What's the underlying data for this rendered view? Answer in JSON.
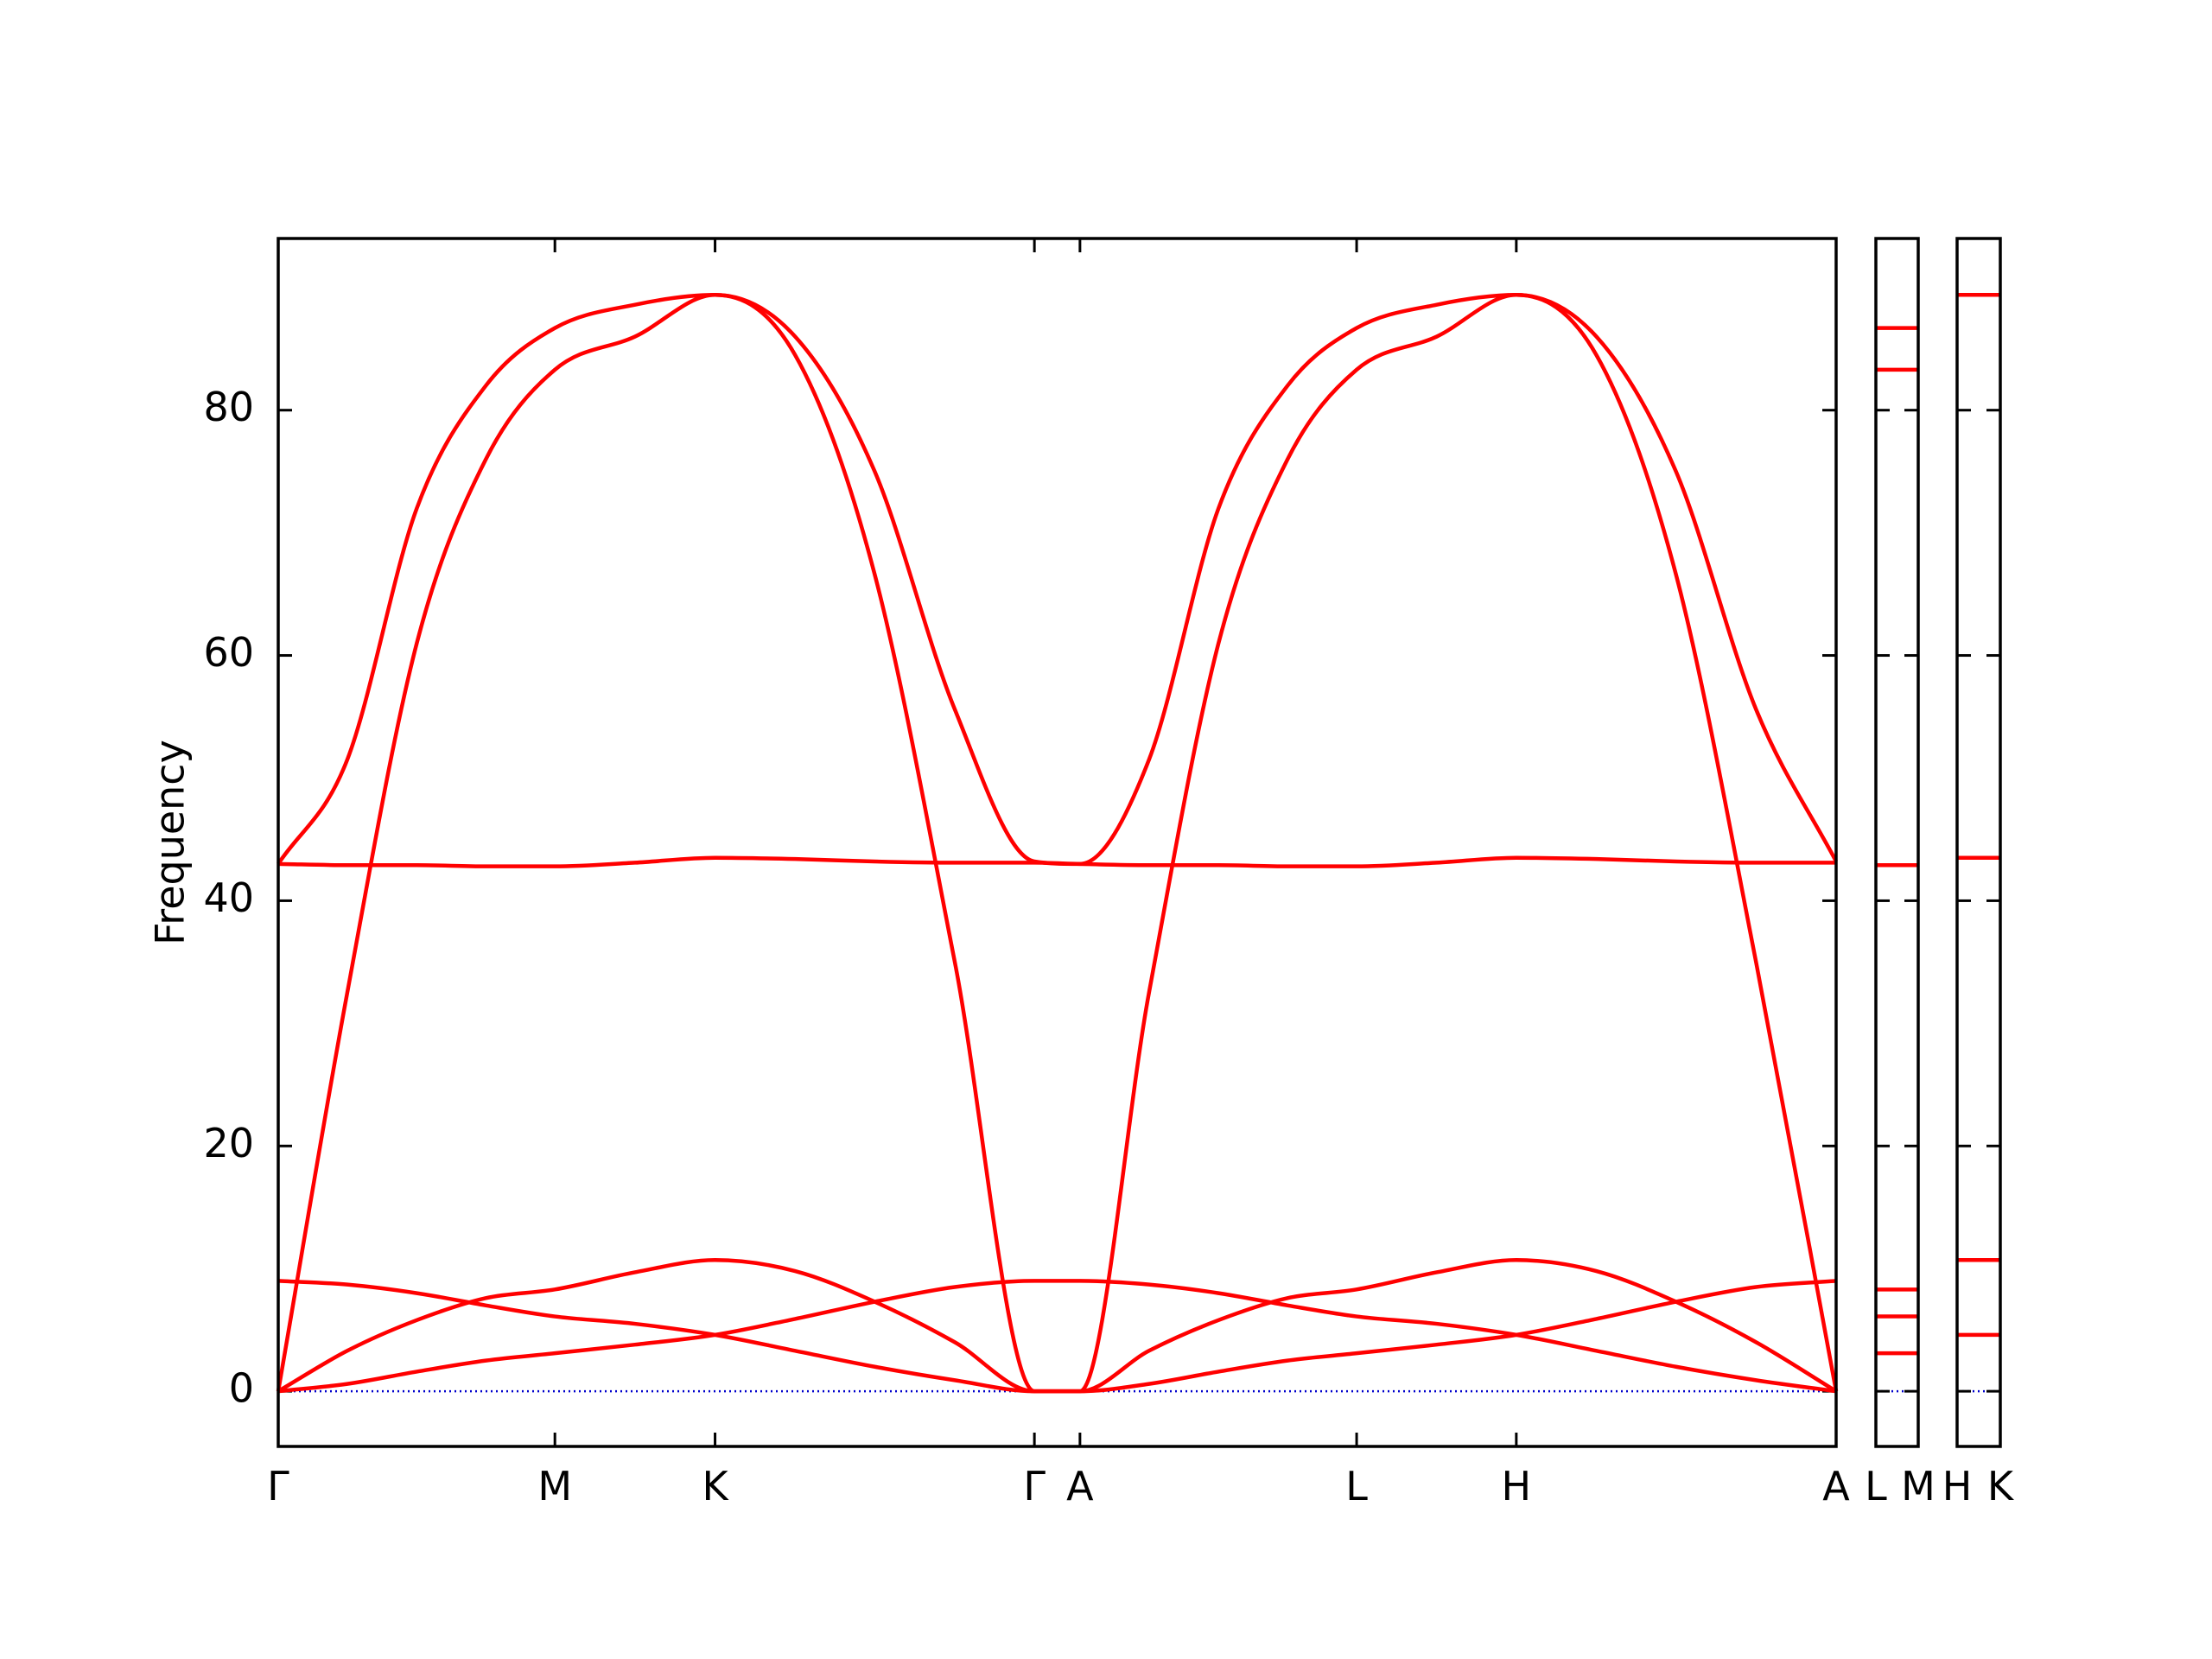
{
  "chart_data": [
    {
      "type": "line",
      "y_label": "Frequency",
      "x": [
        0,
        0.144,
        0.289,
        0.433,
        0.577,
        0.744,
        0.911,
        1.078,
        1.244,
        1.411,
        1.577,
        1.672,
        1.816,
        1.961,
        2.105,
        2.249,
        2.416,
        2.582,
        2.749,
        2.915,
        3.082,
        3.249
      ],
      "xlim": [
        0,
        3.249
      ],
      "xticks": [
        {
          "value": 0,
          "label": "Γ"
        },
        {
          "value": 0.577,
          "label": "M"
        },
        {
          "value": 0.911,
          "label": "K"
        },
        {
          "value": 1.577,
          "label": "Γ"
        },
        {
          "value": 1.672,
          "label": "A"
        },
        {
          "value": 2.249,
          "label": "L"
        },
        {
          "value": 2.582,
          "label": "H"
        },
        {
          "value": 3.249,
          "label": "A"
        }
      ],
      "ylim": [
        -4.5,
        94
      ],
      "yticks": [
        0,
        20,
        40,
        60,
        80
      ],
      "zero_line": true,
      "zero_line_color": "#0000cc",
      "series": [
        {
          "color": "#ff0000",
          "values": [
            0,
            0.6,
            1.6,
            2.5,
            3.1,
            3.8,
            4.6,
            5.9,
            7.3,
            8.5,
            9.0,
            9.0,
            8.7,
            8.0,
            7.0,
            6.1,
            5.5,
            4.6,
            3.3,
            2.0,
            0.9,
            0
          ]
        },
        {
          "color": "#ff0000",
          "values": [
            0,
            3.3,
            5.8,
            7.6,
            8.3,
            9.7,
            10.7,
            9.8,
            7.3,
            4.0,
            0,
            0,
            0.6,
            1.6,
            2.5,
            3.1,
            3.8,
            4.6,
            5.9,
            7.3,
            8.5,
            9.0
          ]
        },
        {
          "color": "#ff0000",
          "values": [
            9.0,
            8.7,
            8.0,
            7.0,
            6.1,
            5.5,
            4.6,
            3.3,
            2.0,
            0.9,
            0,
            0,
            3.3,
            5.8,
            7.6,
            8.3,
            9.7,
            10.7,
            9.8,
            7.3,
            4.0,
            0
          ]
        },
        {
          "color": "#ff0000",
          "values": [
            43.0,
            42.9,
            42.9,
            42.8,
            42.8,
            43.1,
            43.5,
            43.4,
            43.2,
            43.1,
            43.1,
            43.0,
            42.9,
            42.9,
            42.8,
            42.8,
            43.1,
            43.5,
            43.4,
            43.2,
            43.1,
            43.1
          ]
        },
        {
          "color": "#ff0000",
          "values": [
            43.0,
            51.5,
            72,
            82,
            86.7,
            88.6,
            89.4,
            84.5,
            66.6,
            35.0,
            0,
            0,
            32.5,
            61,
            76,
            83.3,
            86,
            89.4,
            86,
            75,
            55.6,
            43.2
          ]
        },
        {
          "color": "#ff0000",
          "values": [
            0,
            32.5,
            61,
            76,
            83.3,
            86,
            89.4,
            86,
            75,
            55.6,
            43.2,
            43.0,
            51.5,
            72,
            82,
            86.7,
            88.6,
            89.4,
            84.5,
            66.6,
            35.0,
            0
          ]
        }
      ]
    },
    {
      "type": "levels",
      "color": "#ff0000",
      "xlim": [
        0,
        1
      ],
      "xticks": [
        {
          "value": 0,
          "label": "L"
        },
        {
          "value": 1,
          "label": "M"
        }
      ],
      "ylim": [
        -4.5,
        94
      ],
      "values": [
        86.7,
        83.3,
        42.9,
        8.3,
        6.1,
        3.1
      ]
    },
    {
      "type": "levels",
      "color": "#ff0000",
      "xlim": [
        0,
        1
      ],
      "xticks": [
        {
          "value": 0,
          "label": "H"
        },
        {
          "value": 1,
          "label": "K"
        }
      ],
      "ylim": [
        -4.5,
        94
      ],
      "values": [
        89.4,
        43.5,
        10.7,
        4.6
      ]
    }
  ]
}
